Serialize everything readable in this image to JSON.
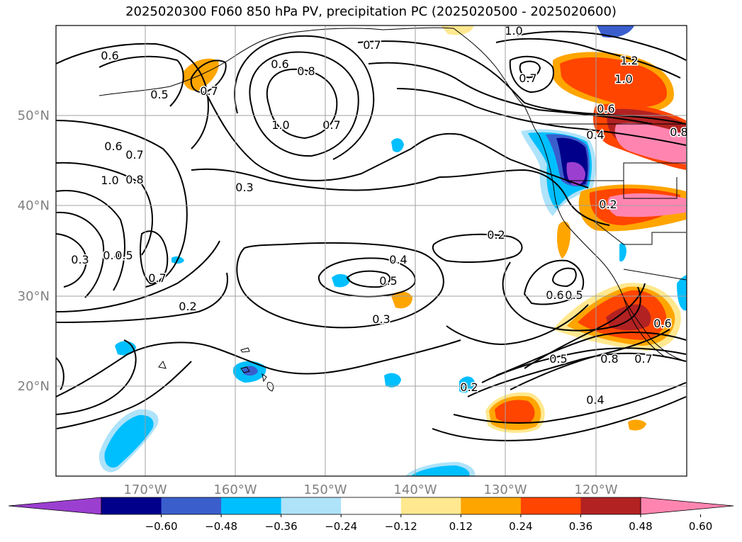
{
  "title": "2025020300 F060 850 hPa PV, precipitation PC (2025020500 - 2025020600)",
  "map": {
    "projection": "plate-carree",
    "lon_range": [
      -180,
      -110
    ],
    "lat_range": [
      10,
      60
    ],
    "longitude_ticks": [
      "170°W",
      "160°W",
      "150°W",
      "140°W",
      "130°W",
      "120°W"
    ],
    "latitude_ticks": [
      "50°N",
      "40°N",
      "30°N",
      "20°N"
    ],
    "grid": true,
    "gridline_color": "#a0a0a0"
  },
  "contours": {
    "field": "850 hPa PV",
    "color": "#000000",
    "labels": [
      "0.6",
      "0.7",
      "0.7",
      "0.6",
      "0.8",
      "0.5",
      "0.7",
      "1.0",
      "0.7",
      "1.0",
      "1.2",
      "1.0",
      "0.6",
      "0.4",
      "0.8",
      "0.7",
      "0.6",
      "1.0",
      "0.8",
      "0.3",
      "0.2",
      "0.2",
      "0.4",
      "0.5",
      "0.3",
      "0.4",
      "0.5",
      "0.7",
      "0.2",
      "0.3",
      "0.6",
      "0.5",
      "0.6",
      "0.8",
      "0.7",
      "0.5",
      "0.2",
      "0.4"
    ]
  },
  "shading": {
    "field": "precipitation PC",
    "colorbar": {
      "ticks": [
        "−0.60",
        "−0.48",
        "−0.36",
        "−0.24",
        "−0.12",
        "0.12",
        "0.24",
        "0.36",
        "0.48",
        "0.60"
      ],
      "bounds": [
        -0.6,
        -0.48,
        -0.36,
        -0.24,
        -0.12,
        0.12,
        0.24,
        0.36,
        0.48,
        0.6
      ],
      "colors": [
        "#9b3fd0",
        "#00008b",
        "#3a5fcd",
        "#00bfff",
        "#aee3fa",
        "#ffffff",
        "#ffe88f",
        "#ffa500",
        "#ff4500",
        "#b22222",
        "#ff85b0"
      ],
      "extend": "both"
    }
  }
}
